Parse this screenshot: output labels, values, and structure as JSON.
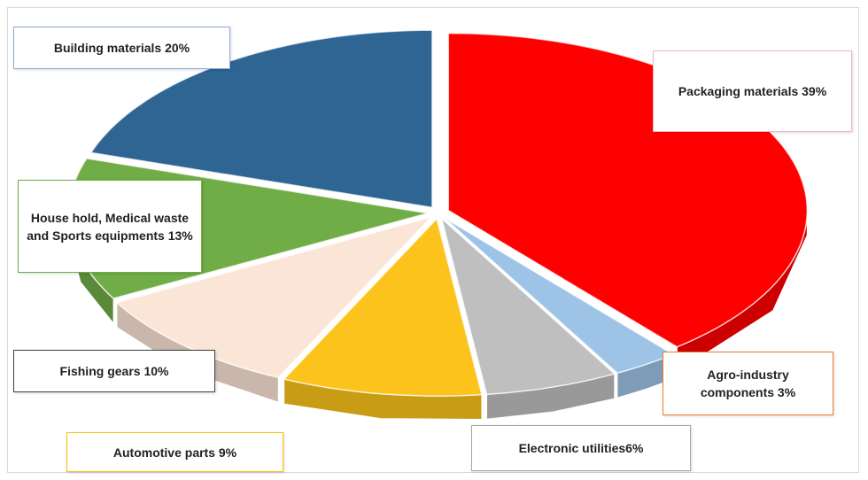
{
  "chart_data": {
    "type": "pie",
    "categories": [
      "Packaging  materials 39%",
      "Agro-industry components 3%",
      "Electronic utilities6%",
      "Automotive parts 9%",
      "Fishing gears 10%",
      "House hold, Medical waste and Sports equipments 13%",
      "Building materials 20%"
    ],
    "values": [
      39,
      3,
      6,
      9,
      10,
      13,
      20
    ],
    "colors": [
      "#ff0000",
      "#9dc3e6",
      "#bfbfbf",
      "#fbc31c",
      "#fbe5d6",
      "#70ad47",
      "#2e6593"
    ]
  }
}
